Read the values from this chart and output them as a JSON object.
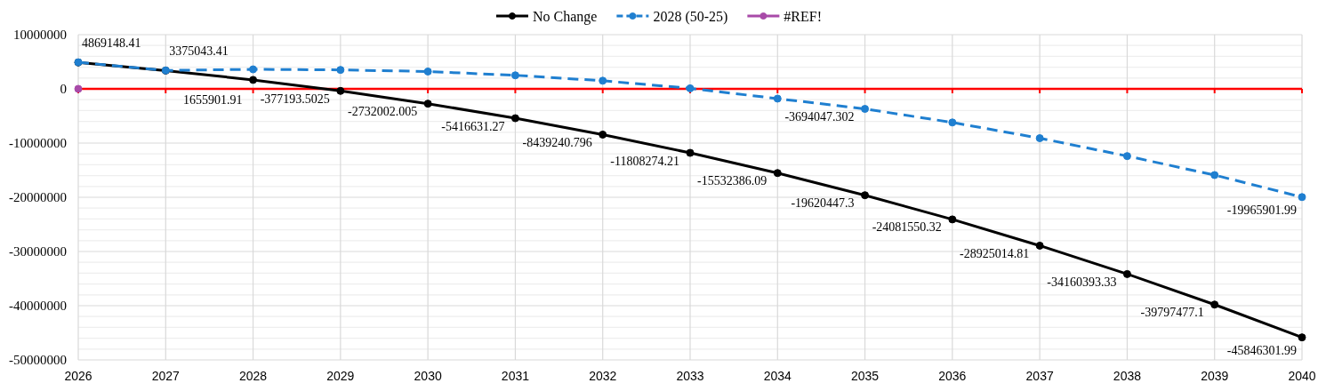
{
  "chart_data": {
    "type": "line",
    "x": [
      2026,
      2027,
      2028,
      2029,
      2030,
      2031,
      2032,
      2033,
      2034,
      2035,
      2036,
      2037,
      2038,
      2039,
      2040
    ],
    "xlim": [
      2026,
      2040
    ],
    "xticks": [
      2026,
      2027,
      2028,
      2029,
      2030,
      2031,
      2032,
      2033,
      2034,
      2035,
      2036,
      2037,
      2038,
      2039,
      2040
    ],
    "ylim": [
      -50000000,
      10000000
    ],
    "yticks": [
      -50000000,
      {
        "value": -48000000,
        "label": null
      },
      {
        "value": -46000000,
        "label": null
      },
      {
        "value": -44000000,
        "label": null
      },
      {
        "value": -42000000,
        "label": null
      },
      -40000000,
      {
        "value": -38000000,
        "label": null
      },
      {
        "value": -36000000,
        "label": null
      },
      {
        "value": -34000000,
        "label": null
      },
      {
        "value": -32000000,
        "label": null
      },
      -30000000,
      {
        "value": -28000000,
        "label": null
      },
      {
        "value": -26000000,
        "label": null
      },
      {
        "value": -24000000,
        "label": null
      },
      {
        "value": -22000000,
        "label": null
      },
      -20000000,
      {
        "value": -18000000,
        "label": null
      },
      {
        "value": -16000000,
        "label": null
      },
      {
        "value": -14000000,
        "label": null
      },
      {
        "value": -12000000,
        "label": null
      },
      -10000000,
      {
        "value": -8000000,
        "label": null
      },
      {
        "value": -6000000,
        "label": null
      },
      {
        "value": -4000000,
        "label": null
      },
      {
        "value": -2000000,
        "label": null
      },
      0,
      {
        "value": 2000000,
        "label": null
      },
      {
        "value": 4000000,
        "label": null
      },
      {
        "value": 6000000,
        "label": null
      },
      {
        "value": 8000000,
        "label": null
      },
      10000000
    ],
    "grid": true,
    "legend": "top",
    "marker": "circle",
    "ref_lines": [
      {
        "axis": "y",
        "value": 0,
        "color": "#ff0000"
      }
    ],
    "series": [
      {
        "name": "No Change",
        "color": "#000000",
        "line_style": "solid",
        "values": [
          4869148.41,
          3375043.41,
          1655901.91,
          -377193.5025,
          -2732002.005,
          -5416631.27,
          -8439240.796,
          -11808274.21,
          -15532386.09,
          -19620447.3,
          -24081550.32,
          -28925014.81,
          -34160393.33,
          -39797477.1,
          -45846301.99
        ],
        "value_labels": [
          "4869148.41",
          "3375043.41",
          "1655901.91",
          "-377193.5025",
          "-2732002.005",
          "-5416631.27",
          "-8439240.796",
          "-11808274.21",
          "-15532386.09",
          "-19620447.3",
          "-24081550.32",
          "-28925014.81",
          "-34160393.33",
          "-39797477.1",
          "-45846301.99"
        ]
      },
      {
        "name": "2028 (50-25)",
        "color": "#1f7fd0",
        "line_style": "dashed",
        "values": [
          4900000,
          3400000,
          3600000,
          3500000,
          3200000,
          2500000,
          1500000,
          100000,
          -1800000,
          -3694047.302,
          -6200000,
          -9100000,
          -12400000,
          -15900000,
          -19965901.99
        ],
        "value_labels": [
          null,
          null,
          null,
          null,
          null,
          null,
          null,
          null,
          null,
          "-3694047.302",
          null,
          null,
          null,
          null,
          "-19965901.99"
        ]
      },
      {
        "name": "#REF!",
        "color": "#a84aa8",
        "line_style": "solid",
        "values": [
          0,
          null,
          null,
          null,
          null,
          null,
          null,
          null,
          null,
          null,
          null,
          null,
          null,
          null,
          null
        ]
      }
    ]
  }
}
